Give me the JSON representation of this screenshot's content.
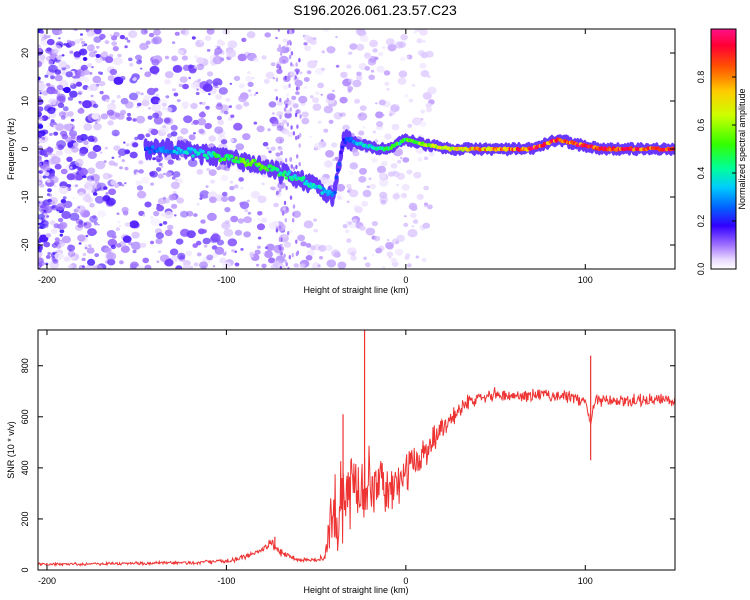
{
  "chart_data": [
    {
      "type": "heatmap",
      "title": "S196.2026.061.23.57.C23",
      "xlabel": "Height of straight line (km)",
      "ylabel": "Frequency (Hz)",
      "xlim": [
        -205,
        150
      ],
      "ylim": [
        -25,
        25
      ],
      "xticks": [
        -200,
        -100,
        0,
        100
      ],
      "yticks": [
        -20,
        -10,
        0,
        10,
        20
      ],
      "colorbar": {
        "label": "Normalized spectral amplitude",
        "range": [
          0,
          1
        ],
        "ticks": [
          0.0,
          0.2,
          0.4,
          0.6,
          0.8
        ]
      },
      "ridge": {
        "x": [
          -145,
          -130,
          -115,
          -100,
          -85,
          -70,
          -60,
          -50,
          -45,
          -40,
          -35,
          -33,
          -25,
          -15,
          -10,
          -5,
          0,
          10,
          25,
          45,
          70,
          85,
          95,
          110,
          130,
          150
        ],
        "y": [
          0,
          0,
          -1,
          -2,
          -3,
          -5,
          -6,
          -8,
          -9,
          -10,
          2,
          2,
          1,
          0,
          0,
          1,
          2,
          1,
          0,
          0,
          0,
          2,
          1,
          0,
          0,
          0
        ],
        "amplitude": [
          0.25,
          0.35,
          0.4,
          0.55,
          0.6,
          0.5,
          0.45,
          0.4,
          0.35,
          0.3,
          0.2,
          0.25,
          0.4,
          0.45,
          0.5,
          0.55,
          0.55,
          0.65,
          0.75,
          0.85,
          0.95,
          0.9,
          0.95,
          0.95,
          0.95,
          0.95
        ]
      }
    },
    {
      "type": "line",
      "xlabel": "Height of straight line (km)",
      "ylabel": "SNR (10 * v/v)",
      "xlim": [
        -205,
        150
      ],
      "ylim": [
        0,
        940
      ],
      "xticks": [
        -200,
        -100,
        0,
        100
      ],
      "yticks": [
        0,
        200,
        400,
        600,
        800
      ],
      "series": [
        {
          "name": "SNR",
          "color": "#ee3333",
          "x": [
            -205,
            -180,
            -150,
            -120,
            -100,
            -90,
            -80,
            -75,
            -70,
            -60,
            -50,
            -45,
            -43,
            -40,
            -35,
            -30,
            -25,
            -22,
            -20,
            -15,
            -10,
            -5,
            0,
            10,
            20,
            30,
            40,
            50,
            60,
            70,
            80,
            90,
            100,
            103,
            105,
            110,
            120,
            130,
            140,
            150
          ],
          "y": [
            22,
            24,
            26,
            28,
            35,
            50,
            80,
            105,
            70,
            40,
            40,
            45,
            150,
            200,
            280,
            320,
            330,
            380,
            350,
            330,
            310,
            330,
            380,
            460,
            560,
            630,
            680,
            690,
            680,
            685,
            685,
            680,
            660,
            570,
            660,
            660,
            660,
            665,
            665,
            665
          ],
          "spread": [
            6,
            7,
            8,
            9,
            10,
            12,
            15,
            25,
            20,
            10,
            10,
            20,
            110,
            180,
            200,
            200,
            180,
            170,
            140,
            120,
            110,
            100,
            90,
            80,
            60,
            40,
            30,
            30,
            30,
            30,
            30,
            30,
            30,
            0,
            30,
            30,
            30,
            30,
            30,
            30
          ]
        }
      ],
      "spikes": [
        {
          "x": -23,
          "y": 940
        },
        {
          "x": -35,
          "y": 610
        },
        {
          "x": 103,
          "y": 840
        },
        {
          "x": 103,
          "y": 430
        },
        {
          "x": -73,
          "y": 130
        }
      ]
    }
  ]
}
